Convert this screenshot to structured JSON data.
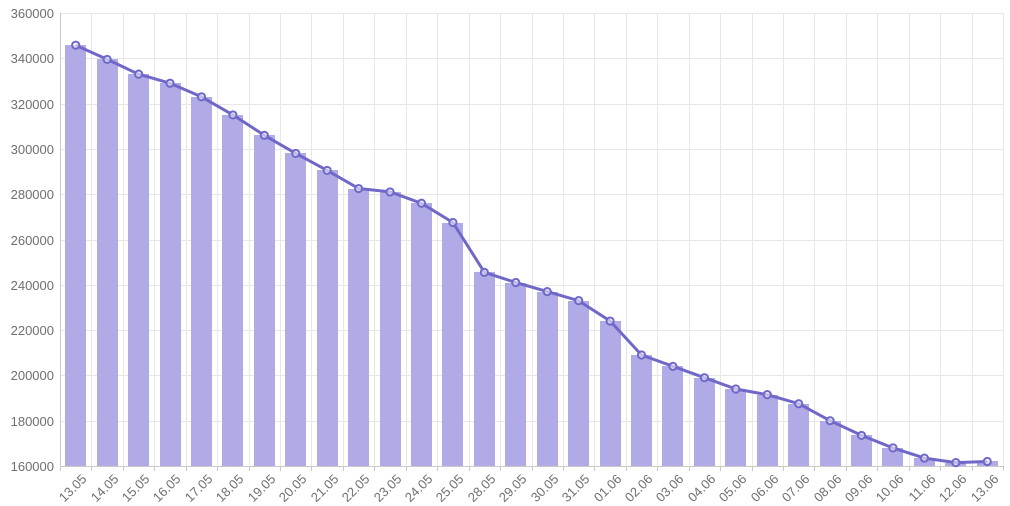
{
  "chart_data": {
    "type": "bar",
    "subtype": "bar-with-line-overlay",
    "title": "",
    "xlabel": "",
    "ylabel": "",
    "legend": "none",
    "grid": true,
    "categories": [
      "13.05",
      "14.05",
      "15.05",
      "16.05",
      "17.05",
      "18.05",
      "19.05",
      "20.05",
      "21.05",
      "22.05",
      "23.05",
      "24.05",
      "25.05",
      "28.05",
      "29.05",
      "30.05",
      "31.05",
      "01.06",
      "02.06",
      "03.06",
      "04.06",
      "05.06",
      "06.06",
      "07.06",
      "08.06",
      "09.06",
      "10.06",
      "11.06",
      "12.06",
      "13.06"
    ],
    "values": [
      345800,
      339500,
      333000,
      329000,
      323000,
      315000,
      306000,
      298000,
      290500,
      282500,
      281000,
      276000,
      267500,
      245500,
      241000,
      237000,
      233000,
      224000,
      209000,
      204000,
      199000,
      194000,
      191500,
      187500,
      180000,
      173500,
      168000,
      163500,
      161500,
      162000
    ],
    "series": [
      {
        "name": "daily-value-bars",
        "type": "bar"
      },
      {
        "name": "daily-value-line",
        "type": "line",
        "markers": "circle"
      }
    ],
    "y_axis": {
      "min": 160000,
      "max": 360000,
      "tick_step": 20000,
      "ticks": [
        "360000",
        "340000",
        "320000",
        "300000",
        "280000",
        "260000",
        "240000",
        "220000",
        "200000",
        "180000",
        "160000"
      ]
    },
    "colors": {
      "bar": "#B0ABE7",
      "line": "#7068C8",
      "marker_stroke": "#7068C8",
      "marker_fill": "#FFFFFF",
      "grid": "#E7E7E7",
      "axis": "#C9C9C9",
      "label": "#6F6F6F",
      "background": "#FFFFFF"
    }
  }
}
